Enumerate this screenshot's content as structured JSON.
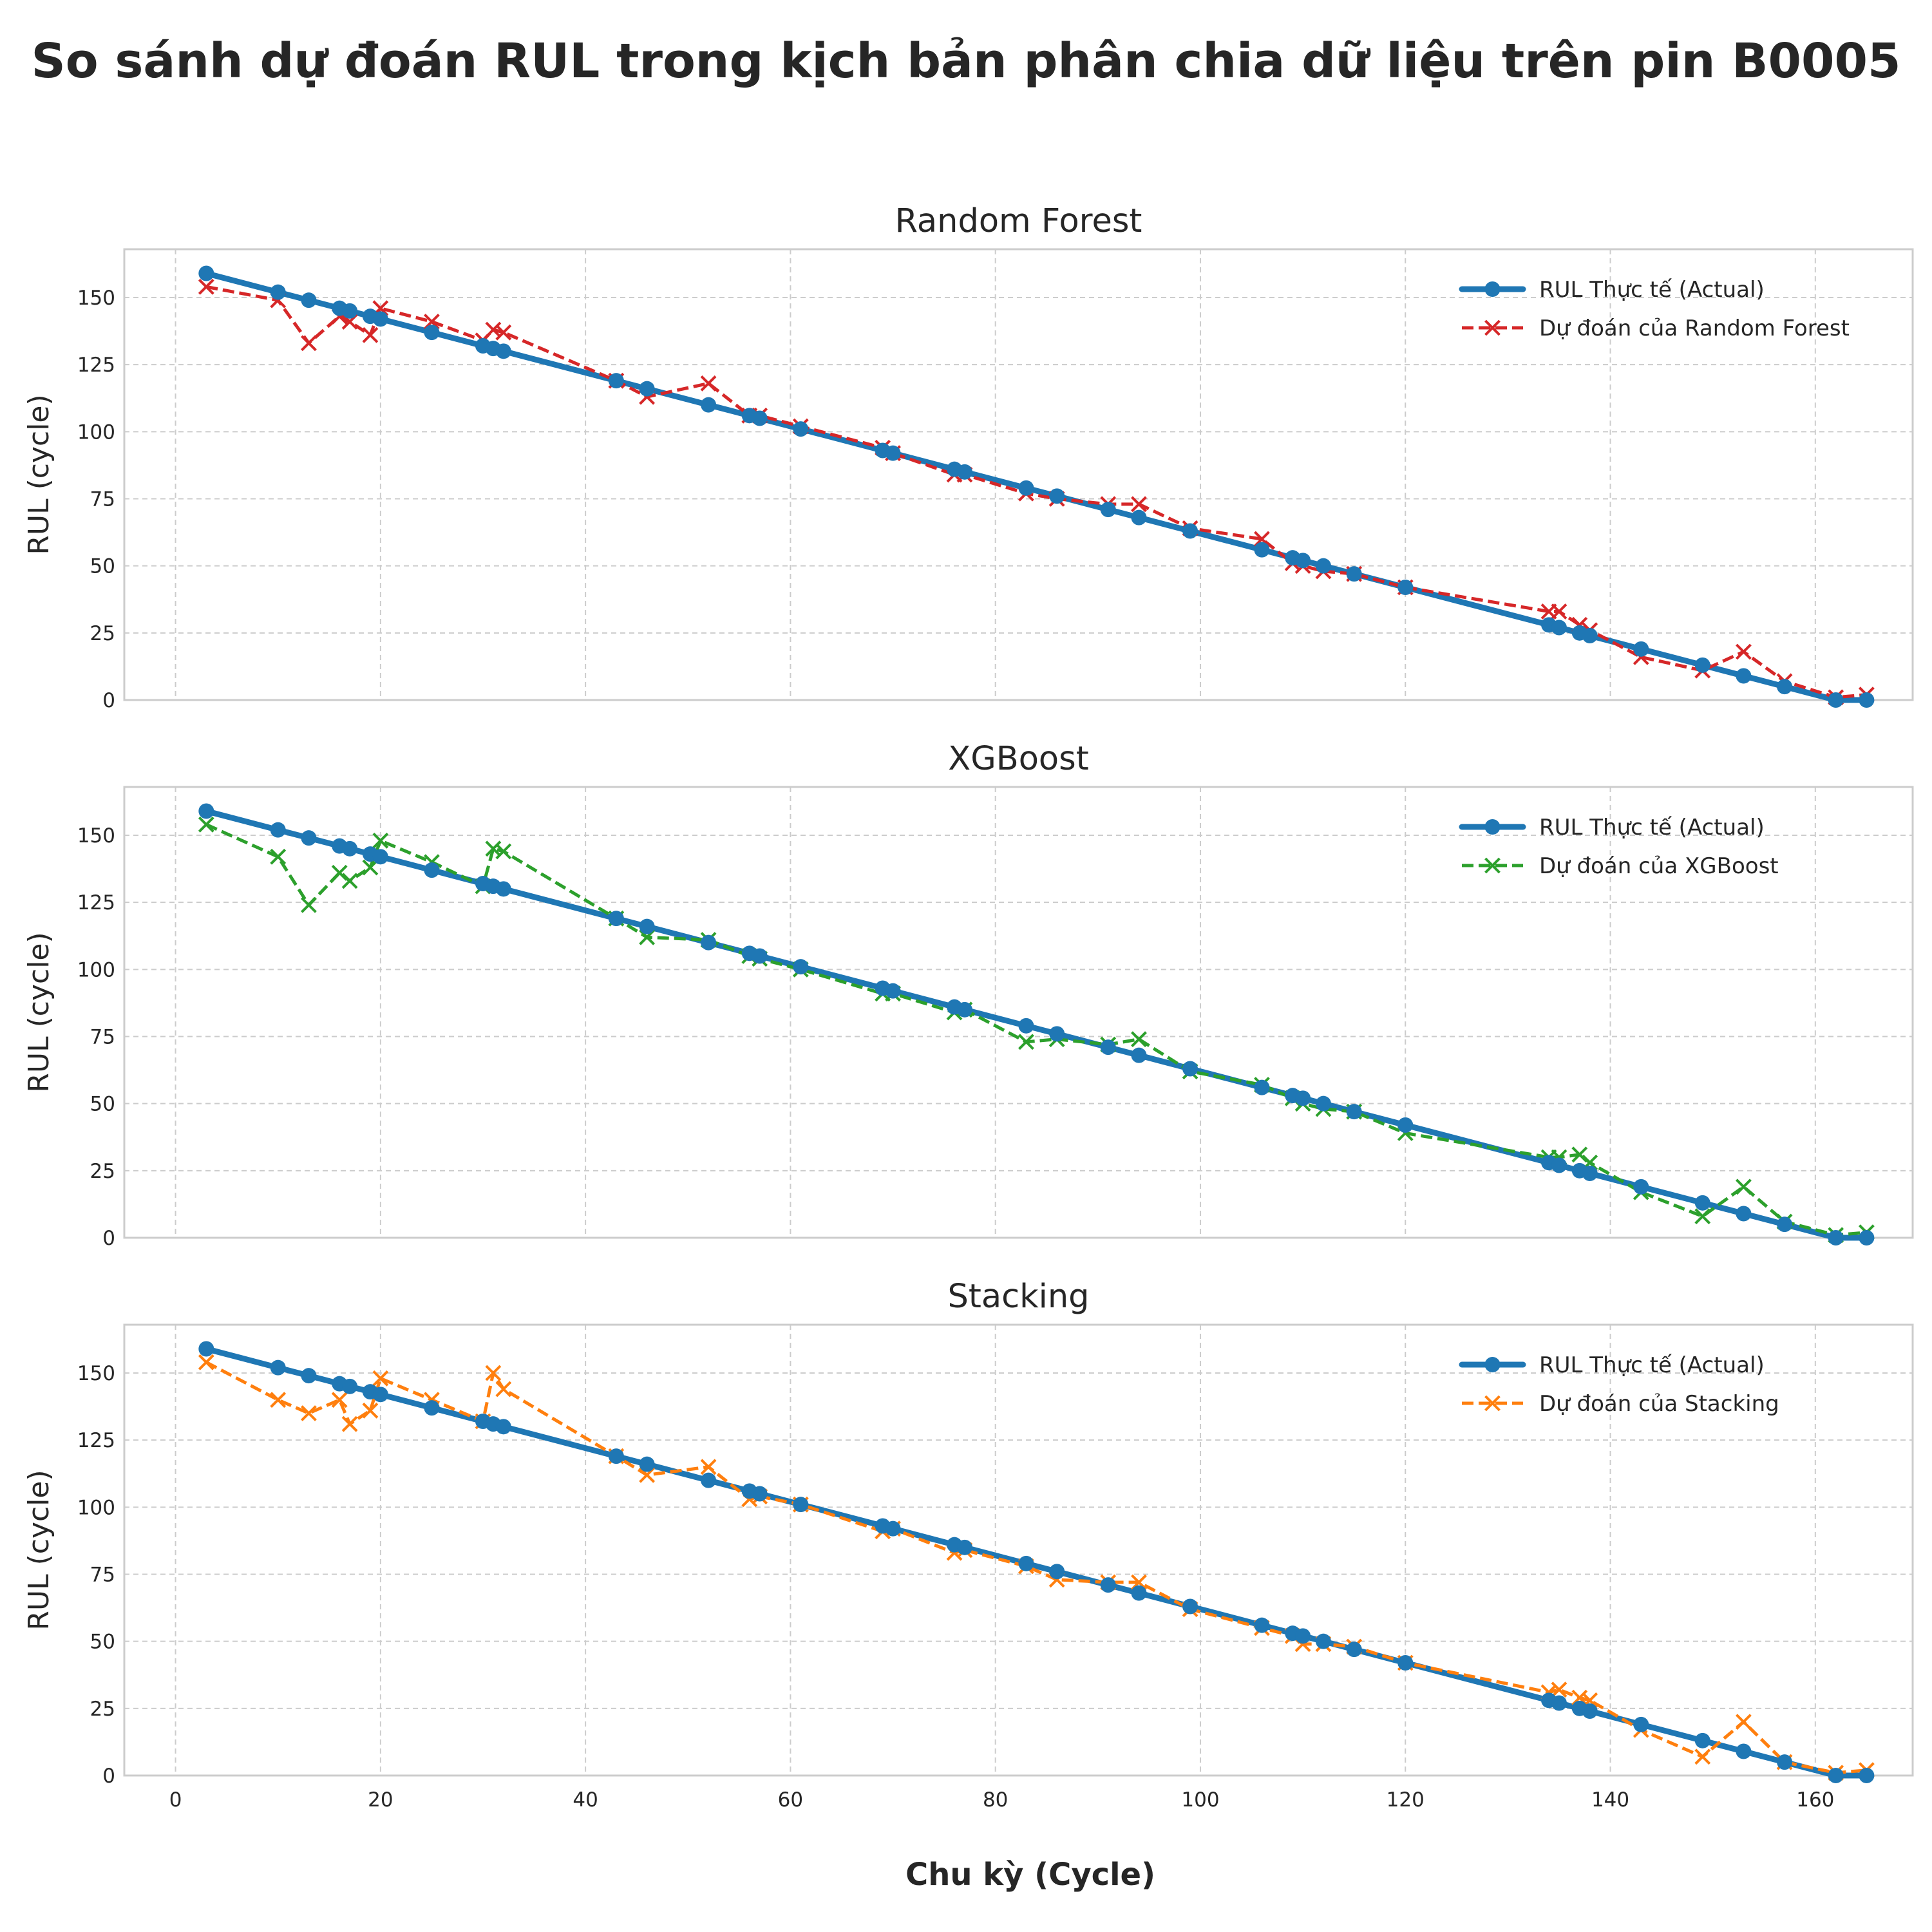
{
  "figure": {
    "title": "So sánh dự đoán RUL trong kịch bản phân chia dữ liệu trên pin B0005",
    "xlabel": "Chu kỳ (Cycle)"
  },
  "chart_data": [
    {
      "type": "line",
      "title": "Random Forest",
      "xlabel": "",
      "ylabel": "RUL (cycle)",
      "xlim": [
        -5,
        169.5
      ],
      "ylim": [
        0,
        168
      ],
      "xticks": [
        0,
        20,
        40,
        60,
        80,
        100,
        120,
        140,
        160
      ],
      "yticks": [
        0,
        25,
        50,
        75,
        100,
        125,
        150
      ],
      "grid": true,
      "legend_position": "top-right",
      "series": [
        {
          "name": "RUL Thực tế (Actual)",
          "color": "#1f77b4",
          "style": "solid-circle",
          "x": [
            3,
            10,
            13,
            16,
            17,
            19,
            20,
            25,
            30,
            31,
            32,
            43,
            46,
            52,
            56,
            57,
            61,
            69,
            70,
            76,
            77,
            83,
            86,
            91,
            94,
            99,
            106,
            109,
            110,
            112,
            115,
            120,
            134,
            135,
            137,
            138,
            143,
            149,
            153,
            157,
            162,
            165
          ],
          "y": [
            159,
            152,
            149,
            146,
            145,
            143,
            142,
            137,
            132,
            131,
            130,
            119,
            116,
            110,
            106,
            105,
            101,
            93,
            92,
            86,
            85,
            79,
            76,
            71,
            68,
            63,
            56,
            53,
            52,
            50,
            47,
            42,
            28,
            27,
            25,
            24,
            19,
            13,
            9,
            5,
            0,
            0
          ]
        },
        {
          "name": "Dự đoán của Random Forest",
          "color": "#d62728",
          "style": "dashed-x",
          "x": [
            3,
            10,
            13,
            16,
            17,
            19,
            20,
            25,
            30,
            31,
            32,
            43,
            46,
            52,
            56,
            57,
            61,
            69,
            70,
            76,
            77,
            83,
            86,
            91,
            94,
            99,
            106,
            109,
            110,
            112,
            115,
            120,
            134,
            135,
            137,
            138,
            143,
            149,
            153,
            157,
            162,
            165
          ],
          "y": [
            154,
            149,
            133,
            143,
            141,
            136,
            146,
            141,
            134,
            138,
            137,
            119,
            113,
            118,
            106,
            106,
            102,
            94,
            92,
            84,
            84,
            77,
            75,
            73,
            73,
            64,
            60,
            51,
            50,
            48,
            47,
            42,
            33,
            33,
            28,
            26,
            16,
            11,
            18,
            7,
            1,
            2
          ]
        }
      ]
    },
    {
      "type": "line",
      "title": "XGBoost",
      "xlabel": "",
      "ylabel": "RUL (cycle)",
      "xlim": [
        -5,
        169.5
      ],
      "ylim": [
        0,
        168
      ],
      "xticks": [
        0,
        20,
        40,
        60,
        80,
        100,
        120,
        140,
        160
      ],
      "yticks": [
        0,
        25,
        50,
        75,
        100,
        125,
        150
      ],
      "grid": true,
      "legend_position": "top-right",
      "series": [
        {
          "name": "RUL Thực tế (Actual)",
          "color": "#1f77b4",
          "style": "solid-circle",
          "x": [
            3,
            10,
            13,
            16,
            17,
            19,
            20,
            25,
            30,
            31,
            32,
            43,
            46,
            52,
            56,
            57,
            61,
            69,
            70,
            76,
            77,
            83,
            86,
            91,
            94,
            99,
            106,
            109,
            110,
            112,
            115,
            120,
            134,
            135,
            137,
            138,
            143,
            149,
            153,
            157,
            162,
            165
          ],
          "y": [
            159,
            152,
            149,
            146,
            145,
            143,
            142,
            137,
            132,
            131,
            130,
            119,
            116,
            110,
            106,
            105,
            101,
            93,
            92,
            86,
            85,
            79,
            76,
            71,
            68,
            63,
            56,
            53,
            52,
            50,
            47,
            42,
            28,
            27,
            25,
            24,
            19,
            13,
            9,
            5,
            0,
            0
          ]
        },
        {
          "name": "Dự đoán của XGBoost",
          "color": "#2ca02c",
          "style": "dashed-x",
          "x": [
            3,
            10,
            13,
            16,
            17,
            19,
            20,
            25,
            30,
            31,
            32,
            43,
            46,
            52,
            56,
            57,
            61,
            69,
            70,
            76,
            77,
            83,
            86,
            91,
            94,
            99,
            106,
            109,
            110,
            112,
            115,
            120,
            134,
            135,
            137,
            138,
            143,
            149,
            153,
            157,
            162,
            165
          ],
          "y": [
            154,
            142,
            124,
            136,
            133,
            138,
            148,
            140,
            131,
            145,
            144,
            119,
            112,
            111,
            105,
            104,
            100,
            91,
            91,
            84,
            85,
            73,
            74,
            72,
            74,
            62,
            57,
            52,
            50,
            48,
            47,
            39,
            30,
            30,
            31,
            28,
            17,
            8,
            19,
            6,
            1,
            2
          ]
        }
      ]
    },
    {
      "type": "line",
      "title": "Stacking",
      "xlabel": "Chu kỳ (Cycle)",
      "ylabel": "RUL (cycle)",
      "xlim": [
        -5,
        169.5
      ],
      "ylim": [
        0,
        168
      ],
      "xticks": [
        0,
        20,
        40,
        60,
        80,
        100,
        120,
        140,
        160
      ],
      "yticks": [
        0,
        25,
        50,
        75,
        100,
        125,
        150
      ],
      "grid": true,
      "legend_position": "top-right",
      "series": [
        {
          "name": "RUL Thực tế (Actual)",
          "color": "#1f77b4",
          "style": "solid-circle",
          "x": [
            3,
            10,
            13,
            16,
            17,
            19,
            20,
            25,
            30,
            31,
            32,
            43,
            46,
            52,
            56,
            57,
            61,
            69,
            70,
            76,
            77,
            83,
            86,
            91,
            94,
            99,
            106,
            109,
            110,
            112,
            115,
            120,
            134,
            135,
            137,
            138,
            143,
            149,
            153,
            157,
            162,
            165
          ],
          "y": [
            159,
            152,
            149,
            146,
            145,
            143,
            142,
            137,
            132,
            131,
            130,
            119,
            116,
            110,
            106,
            105,
            101,
            93,
            92,
            86,
            85,
            79,
            76,
            71,
            68,
            63,
            56,
            53,
            52,
            50,
            47,
            42,
            28,
            27,
            25,
            24,
            19,
            13,
            9,
            5,
            0,
            0
          ]
        },
        {
          "name": "Dự đoán của Stacking",
          "color": "#ff7f0e",
          "style": "dashed-x",
          "x": [
            3,
            10,
            13,
            16,
            17,
            19,
            20,
            25,
            30,
            31,
            32,
            43,
            46,
            52,
            56,
            57,
            61,
            69,
            70,
            76,
            77,
            83,
            86,
            91,
            94,
            99,
            106,
            109,
            110,
            112,
            115,
            120,
            134,
            135,
            137,
            138,
            143,
            149,
            153,
            157,
            162,
            165
          ],
          "y": [
            154,
            140,
            135,
            140,
            131,
            136,
            148,
            140,
            132,
            150,
            144,
            119,
            112,
            115,
            103,
            104,
            101,
            91,
            92,
            83,
            84,
            78,
            73,
            72,
            72,
            62,
            55,
            52,
            49,
            49,
            48,
            42,
            31,
            32,
            29,
            28,
            17,
            7,
            20,
            5,
            1,
            2
          ]
        }
      ]
    }
  ]
}
